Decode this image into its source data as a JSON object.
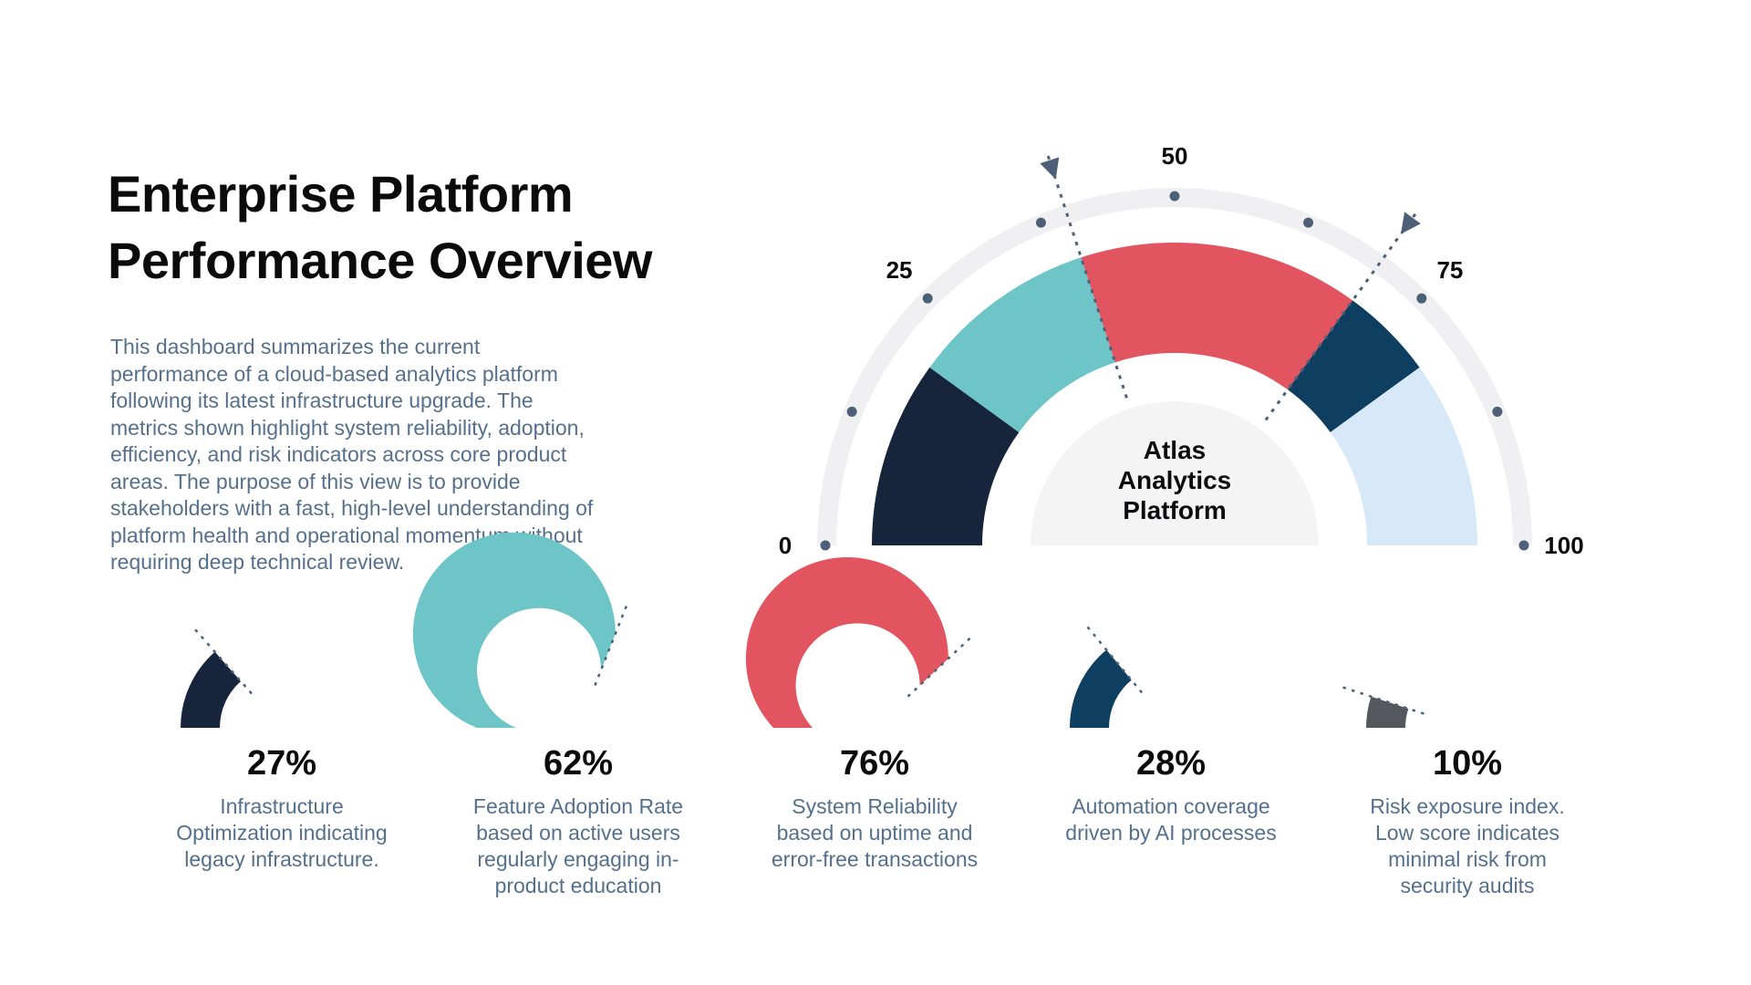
{
  "header": {
    "title": "Enterprise Platform\nPerformance Overview",
    "description": "This dashboard summarizes the current\nperformance of a cloud-based analytics platform\nfollowing its latest infrastructure upgrade. The\nmetrics shown highlight system reliability, adoption,\nefficiency, and risk indicators across core product\nareas. The purpose of this view is to provide\nstakeholders with a fast, high-level understanding of\nplatform health and operational momentum without\nrequiring deep technical review.",
    "text_color": "#56708b",
    "title_color": "#0b0b0c"
  },
  "chart_data": {
    "type": "gauge",
    "center_label": "Atlas\nAnalytics\nPlatform",
    "axis": {
      "min": 0,
      "max": 100,
      "tick_labels": [
        "0",
        "25",
        "50",
        "75",
        "100"
      ],
      "dot_step": 12.5
    },
    "segments": [
      {
        "from": 0,
        "to": 20,
        "color": "#16253c"
      },
      {
        "from": 20,
        "to": 40,
        "color": "#6ec5c7"
      },
      {
        "from": 40,
        "to": 70,
        "color": "#e2545f"
      },
      {
        "from": 70,
        "to": 80,
        "color": "#0f3f60"
      },
      {
        "from": 80,
        "to": 100,
        "color": "#d7e9f8"
      }
    ],
    "marker_values": [
      40,
      70
    ],
    "colors": {
      "ring": "#f0f0f2",
      "dot": "#4d6078",
      "bubble": "#f4f4f5",
      "marker": "#4d6078"
    },
    "mini_gauges": [
      {
        "value": 27,
        "label": "27%",
        "color": "#16253c",
        "description": "Infrastructure\nOptimization indicating\nlegacy infrastructure."
      },
      {
        "value": 62,
        "label": "62%",
        "color": "#6ec5c7",
        "description": "Feature Adoption Rate\nbased on active users\nregularly engaging in-\nproduct education"
      },
      {
        "value": 76,
        "label": "76%",
        "color": "#e2545f",
        "description": "System Reliability\nbased on uptime and\nerror-free transactions"
      },
      {
        "value": 28,
        "label": "28%",
        "color": "#0f3f60",
        "description": "Automation coverage\ndriven by AI processes"
      },
      {
        "value": 10,
        "label": "10%",
        "color": "#54585c",
        "description": "Risk exposure index.\nLow score indicates\nminimal risk from\nsecurity audits"
      }
    ]
  }
}
